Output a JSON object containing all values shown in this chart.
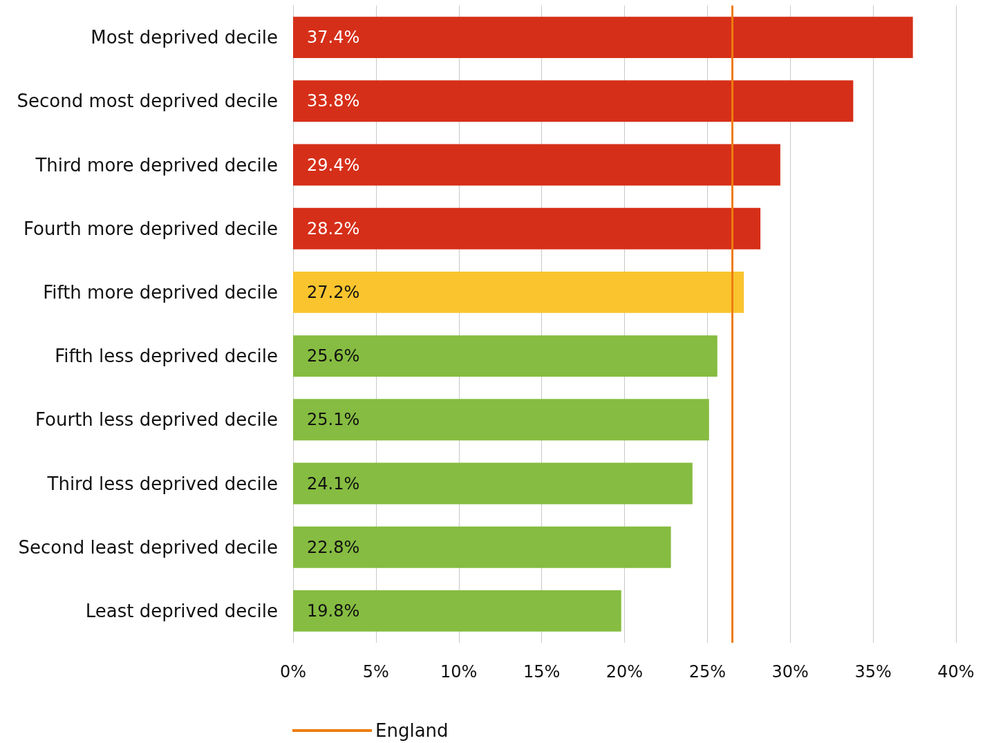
{
  "chart_data": {
    "type": "bar",
    "orientation": "horizontal",
    "categories": [
      "Most deprived decile",
      "Second most deprived decile",
      "Third more deprived decile",
      "Fourth more deprived decile",
      "Fifth more deprived decile",
      "Fifth less deprived decile",
      "Fourth less deprived decile",
      "Third less deprived decile",
      "Second least deprived decile",
      "Least deprived decile"
    ],
    "values": [
      37.4,
      33.8,
      29.4,
      28.2,
      27.2,
      25.6,
      25.1,
      24.1,
      22.8,
      19.8
    ],
    "colors": [
      "#d62f19",
      "#d62f19",
      "#d62f19",
      "#d62f19",
      "#f9c42e",
      "#86bc41",
      "#86bc41",
      "#86bc41",
      "#86bc41",
      "#86bc41"
    ],
    "value_labels": [
      "37.4%",
      "33.8%",
      "29.4%",
      "28.2%",
      "27.2%",
      "25.6%",
      "25.1%",
      "24.1%",
      "22.8%",
      "19.8%"
    ],
    "xlim": [
      0,
      40
    ],
    "xticks": [
      {
        "value": 0,
        "label": "0%"
      },
      {
        "value": 5,
        "label": "5%"
      },
      {
        "value": 10,
        "label": "10%"
      },
      {
        "value": 15,
        "label": "15%"
      },
      {
        "value": 20,
        "label": "20%"
      },
      {
        "value": 25,
        "label": "25%"
      },
      {
        "value": 30,
        "label": "30%"
      },
      {
        "value": 35,
        "label": "35%"
      },
      {
        "value": 40,
        "label": "40%"
      }
    ],
    "ref_lines": [
      {
        "axis": "x",
        "value": 26.5,
        "label": "England",
        "color": "#ee7d0f"
      }
    ],
    "grid": "x",
    "legend": "bottom"
  }
}
